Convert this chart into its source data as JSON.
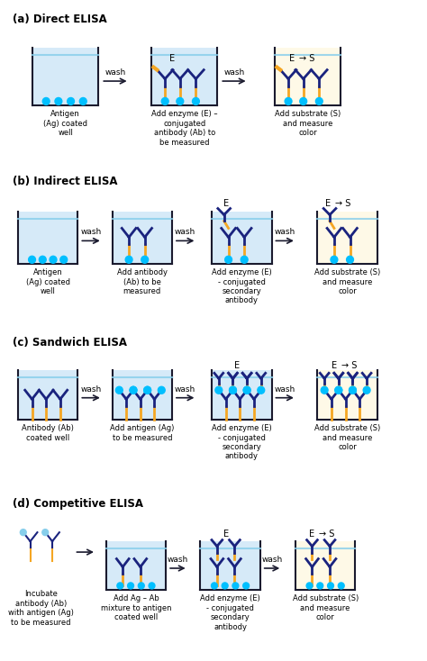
{
  "title_a": "(a) Direct ELISA",
  "title_b": "(b) Indirect ELISA",
  "title_c": "(c) Sandwich ELISA",
  "title_d": "(d) Competitive ELISA",
  "well_fill_blue": "#d6eaf8",
  "well_fill_yellow": "#fef9e7",
  "well_border": "#1a1a2e",
  "water_line": "#87ceeb",
  "ab_dark": "#1a237e",
  "ab_gold": "#f5a623",
  "antigen_dot": "#00bfff",
  "enzyme_tag": "#f5a623",
  "arrow_color": "#333333",
  "section_label_fontsize": 8.5,
  "caption_fontsize": 6.5,
  "label_fontsize": 7.5
}
